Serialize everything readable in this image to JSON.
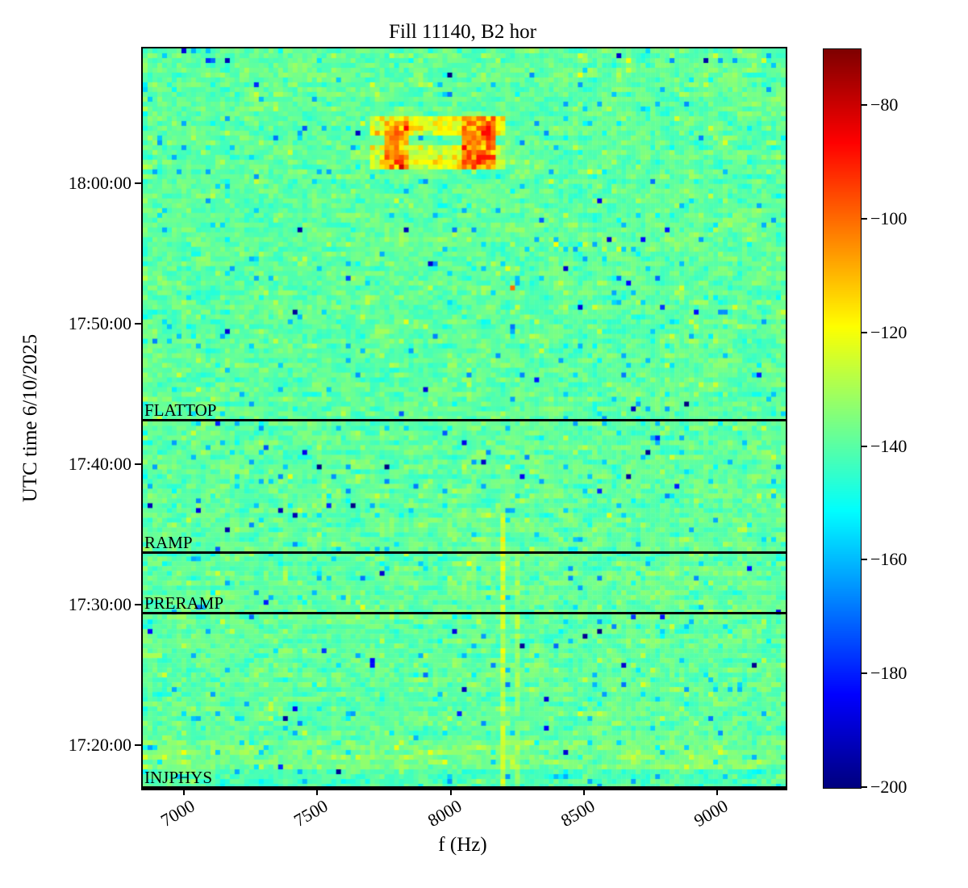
{
  "chart_data": {
    "type": "heatmap",
    "title": "Fill 11140, B2 hor",
    "xlabel": "f (Hz)",
    "ylabel": "UTC time 6/10/2025",
    "x_range": [
      6840,
      9250
    ],
    "x_ticks": [
      7000,
      7500,
      8000,
      8500,
      9000
    ],
    "y_time_top": "18:09:45",
    "y_time_bottom": "17:17:00",
    "y_ticks": [
      "18:00:00",
      "17:50:00",
      "17:40:00",
      "17:30:00",
      "17:20:00"
    ],
    "colorbar": {
      "colormap": "jet",
      "vmin": -200,
      "vmax": -70,
      "ticks": [
        -80,
        -100,
        -120,
        -140,
        -160,
        -180,
        -200
      ]
    },
    "noise": {
      "mean_db": -139,
      "std_db": 5.2,
      "cols": 133,
      "rows": 153,
      "seed": 42
    },
    "beam_modes": [
      {
        "label": "FLATTOP",
        "time": "17:43:15"
      },
      {
        "label": "RAMP",
        "time": "17:33:50"
      },
      {
        "label": "PRERAMP",
        "time": "17:29:30"
      },
      {
        "label": "INJPHYS",
        "time": "17:17:05"
      }
    ],
    "features": [
      {
        "name": "excitation-band-upper",
        "f": [
          7690,
          8205
        ],
        "t": [
          "18:03:25",
          "18:04:50"
        ],
        "mode": "max",
        "level_db": -122,
        "jitter_db": 6
      },
      {
        "name": "excitation-band-lower",
        "f": [
          7690,
          8205
        ],
        "t": [
          "18:01:10",
          "18:03:00"
        ],
        "mode": "max",
        "level_db": -123,
        "jitter_db": 6
      },
      {
        "name": "excitation-hotspot-left",
        "f": [
          7745,
          7845
        ],
        "t": [
          "18:01:15",
          "18:04:45"
        ],
        "mode": "max",
        "level_db": -106,
        "jitter_db": 8
      },
      {
        "name": "excitation-hotspot-right",
        "f": [
          8040,
          8155
        ],
        "t": [
          "18:01:10",
          "18:04:50"
        ],
        "mode": "max",
        "level_db": -103,
        "jitter_db": 8
      },
      {
        "name": "isolated-dot",
        "f": [
          8222,
          8242
        ],
        "t": [
          "17:52:35",
          "17:52:58"
        ],
        "mode": "max",
        "level_db": -103,
        "jitter_db": 2
      },
      {
        "name": "vertical-line-8190",
        "f": [
          8176,
          8206
        ],
        "t": [
          "17:17:00",
          "17:36:30"
        ],
        "mode": "max",
        "level_db": -127,
        "jitter_db": 5
      },
      {
        "name": "vertical-line-8250",
        "f": [
          8234,
          8262
        ],
        "t": [
          "17:17:00",
          "17:33:40"
        ],
        "mode": "max",
        "level_db": -133,
        "jitter_db": 4
      },
      {
        "name": "broad-smear",
        "f": [
          7980,
          8145
        ],
        "t": [
          "17:29:30",
          "17:37:00"
        ],
        "mode": "bias",
        "level_db": 2.5
      },
      {
        "name": "injection-lighter-band",
        "f": [
          6840,
          9250
        ],
        "t": [
          "17:18:30",
          "17:20:30"
        ],
        "mode": "bias",
        "level_db": 3.5
      },
      {
        "name": "bottom-cool-band",
        "f": [
          6840,
          9250
        ],
        "t": [
          "17:17:00",
          "17:18:25"
        ],
        "mode": "bias",
        "level_db": -2.5
      }
    ]
  }
}
